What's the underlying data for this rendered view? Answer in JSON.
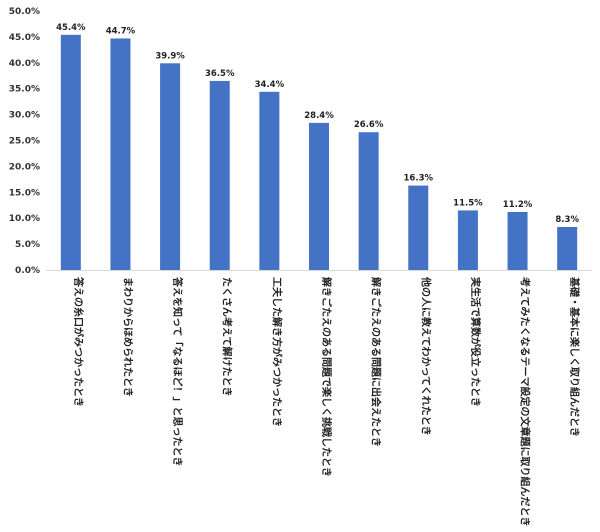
{
  "chart_data": {
    "type": "bar",
    "title": "",
    "xlabel": "",
    "ylabel": "",
    "ylim": [
      0,
      50
    ],
    "y_ticks": [
      "0.0%",
      "5.0%",
      "10.0%",
      "15.0%",
      "20.0%",
      "25.0%",
      "30.0%",
      "35.0%",
      "40.0%",
      "45.0%",
      "50.0%"
    ],
    "grid": false,
    "bar_color": "#4472C4",
    "categories": [
      "答えの糸口がみつかったとき",
      "まわりからほめられたとき",
      "答えを知って「なるほど！」と思ったとき",
      "たくさん考えて解けたとき",
      "工夫した解き方がみつかったとき",
      "解きごたえのある問題で楽しく挑戦したとき",
      "解きごたえのある問題に出会えたとき",
      "他の人に教えてわかってくれたとき",
      "実生活で算数が役立ったとき",
      "考えてみたくなるテーマ設定の文章題に取り組んだとき",
      "基礎・基本に楽しく取り組んだとき"
    ],
    "values": [
      45.4,
      44.7,
      39.9,
      36.5,
      34.4,
      28.4,
      26.6,
      16.3,
      11.5,
      11.2,
      8.3
    ],
    "value_labels": [
      "45.4%",
      "44.7%",
      "39.9%",
      "36.5%",
      "34.4%",
      "28.4%",
      "26.6%",
      "16.3%",
      "11.5%",
      "11.2%",
      "8.3%"
    ]
  }
}
